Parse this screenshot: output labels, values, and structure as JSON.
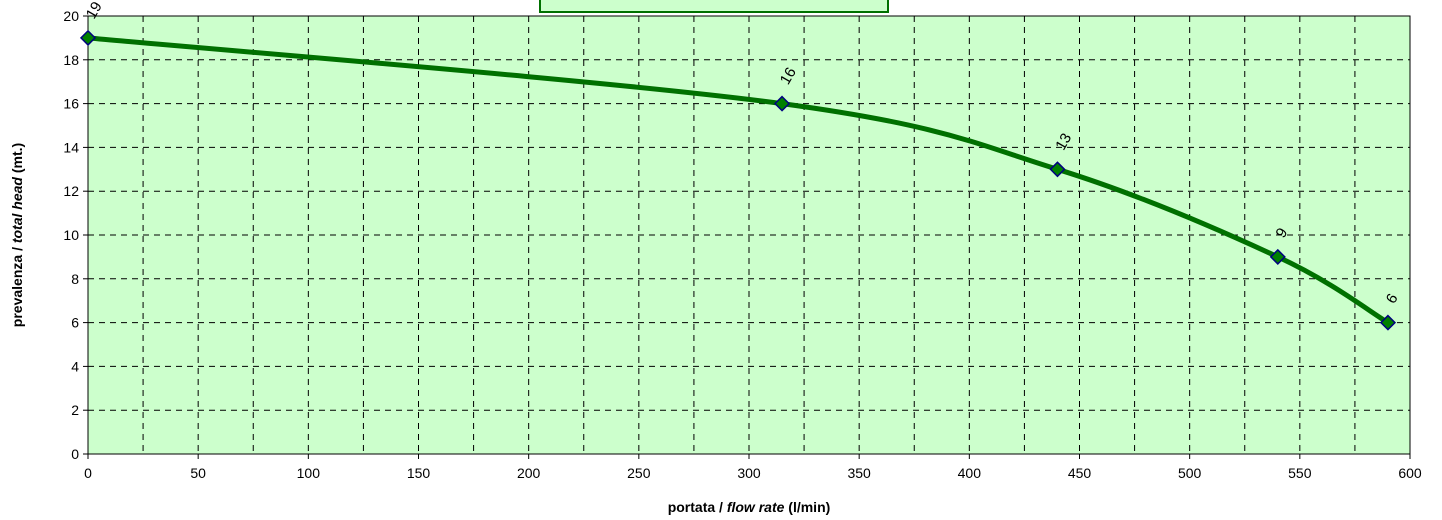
{
  "chart_data": {
    "type": "line",
    "title": "",
    "xlabel": {
      "parts": [
        {
          "text": "portata / ",
          "italic": false
        },
        {
          "text": "flow rate",
          "italic": true
        },
        {
          "text": " (l/min)",
          "italic": false
        }
      ]
    },
    "ylabel": {
      "parts": [
        {
          "text": "prevalenza / ",
          "italic": false
        },
        {
          "text": "total head",
          "italic": true
        },
        {
          "text": " (mt.)",
          "italic": false
        }
      ]
    },
    "xlim": [
      0,
      600
    ],
    "ylim": [
      0,
      20
    ],
    "x_major_ticks": [
      0,
      50,
      100,
      150,
      200,
      250,
      300,
      350,
      400,
      450,
      500,
      550,
      600
    ],
    "x_grid_step": 25,
    "y_ticks": [
      0,
      2,
      4,
      6,
      8,
      10,
      12,
      14,
      16,
      18,
      20
    ],
    "grid": true,
    "legend": "none",
    "colors": {
      "plot_background": "#ccffcc",
      "line": "#007000",
      "marker_fill": "#008000",
      "marker_edge": "#000080",
      "grid": "#000000"
    },
    "series": [
      {
        "x": [
          0,
          315,
          440,
          540,
          590
        ],
        "y": [
          19,
          16,
          13,
          9,
          6
        ],
        "data_labels": [
          "19",
          "16",
          "13",
          "9",
          "6"
        ]
      }
    ]
  }
}
